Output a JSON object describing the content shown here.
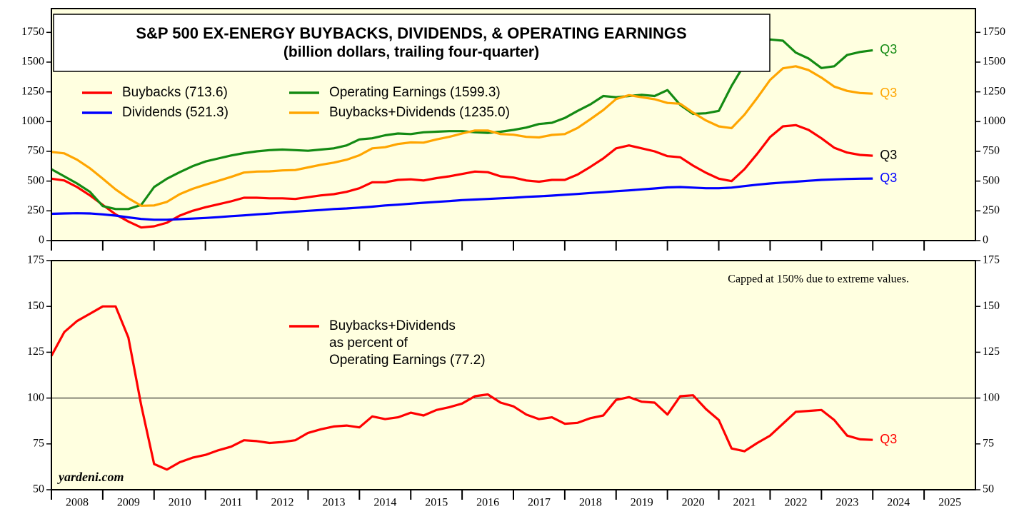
{
  "chart_data": [
    {
      "type": "line",
      "title": "S&P 500 EX-ENERGY BUYBACKS, DIVIDENDS, & OPERATING EARNINGS",
      "subtitle": "(billion dollars, trailing four-quarter)",
      "x": [
        2008,
        2008.25,
        2008.5,
        2008.75,
        2009,
        2009.25,
        2009.5,
        2009.75,
        2010,
        2010.25,
        2010.5,
        2010.75,
        2011,
        2011.25,
        2011.5,
        2011.75,
        2012,
        2012.25,
        2012.5,
        2012.75,
        2013,
        2013.25,
        2013.5,
        2013.75,
        2014,
        2014.25,
        2014.5,
        2014.75,
        2015,
        2015.25,
        2015.5,
        2015.75,
        2016,
        2016.25,
        2016.5,
        2016.75,
        2017,
        2017.25,
        2017.5,
        2017.75,
        2018,
        2018.25,
        2018.5,
        2018.75,
        2019,
        2019.25,
        2019.5,
        2019.75,
        2020,
        2020.25,
        2020.5,
        2020.75,
        2021,
        2021.25,
        2021.5,
        2021.75,
        2022,
        2022.25,
        2022.5,
        2022.75,
        2023,
        2023.25,
        2023.5,
        2023.75,
        2024
      ],
      "xlim": [
        2008,
        2026
      ],
      "xticks": [
        2008,
        2009,
        2010,
        2011,
        2012,
        2013,
        2014,
        2015,
        2016,
        2017,
        2018,
        2019,
        2020,
        2021,
        2022,
        2023,
        2024,
        2025
      ],
      "ylim": [
        0,
        1950
      ],
      "yticks": [
        0,
        250,
        500,
        750,
        1000,
        1250,
        1500,
        1750
      ],
      "series": [
        {
          "name": "Buybacks (713.6)",
          "color": "#ff0000",
          "end_label": "Q3",
          "end_label_color": "#000000",
          "values": [
            520,
            505,
            450,
            380,
            300,
            220,
            160,
            110,
            120,
            150,
            210,
            250,
            280,
            305,
            330,
            360,
            360,
            355,
            355,
            350,
            365,
            380,
            390,
            410,
            440,
            490,
            490,
            510,
            515,
            505,
            525,
            540,
            560,
            580,
            575,
            540,
            530,
            505,
            495,
            510,
            510,
            555,
            620,
            690,
            775,
            800,
            775,
            750,
            710,
            700,
            630,
            570,
            520,
            500,
            600,
            730,
            870,
            960,
            970,
            930,
            860,
            780,
            740,
            720,
            713.6
          ]
        },
        {
          "name": "Dividends (521.3)",
          "color": "#0000ff",
          "end_label": "Q3",
          "end_label_color": "#0000ff",
          "values": [
            225,
            228,
            230,
            228,
            220,
            210,
            195,
            182,
            175,
            175,
            180,
            185,
            190,
            197,
            205,
            212,
            220,
            227,
            235,
            243,
            250,
            257,
            265,
            270,
            277,
            285,
            295,
            302,
            310,
            318,
            325,
            332,
            340,
            345,
            350,
            355,
            360,
            367,
            372,
            378,
            385,
            392,
            400,
            407,
            415,
            422,
            430,
            438,
            447,
            450,
            445,
            440,
            440,
            445,
            458,
            470,
            480,
            488,
            495,
            503,
            510,
            514,
            518,
            520,
            521.3
          ]
        },
        {
          "name": "Operating Earnings (1599.3)",
          "color": "#138a13",
          "end_label": "Q3",
          "end_label_color": "#138a13",
          "values": [
            600,
            540,
            480,
            410,
            290,
            265,
            265,
            300,
            450,
            520,
            575,
            625,
            665,
            690,
            715,
            735,
            750,
            760,
            765,
            760,
            755,
            765,
            775,
            800,
            850,
            860,
            885,
            900,
            895,
            910,
            915,
            920,
            920,
            910,
            905,
            915,
            930,
            950,
            980,
            990,
            1030,
            1090,
            1145,
            1215,
            1205,
            1215,
            1225,
            1215,
            1265,
            1140,
            1065,
            1070,
            1090,
            1300,
            1480,
            1560,
            1690,
            1680,
            1580,
            1530,
            1450,
            1465,
            1560,
            1585,
            1599.3
          ]
        },
        {
          "name": "Buybacks+Dividends (1235.0)",
          "color": "#ffa500",
          "end_label": "Q3",
          "end_label_color": "#ffa500",
          "values": [
            745,
            733,
            680,
            608,
            520,
            430,
            355,
            292,
            295,
            325,
            390,
            435,
            470,
            502,
            535,
            572,
            580,
            582,
            590,
            593,
            615,
            637,
            655,
            680,
            717,
            775,
            785,
            812,
            825,
            823,
            850,
            872,
            900,
            925,
            925,
            895,
            890,
            872,
            867,
            888,
            895,
            947,
            1020,
            1097,
            1190,
            1222,
            1205,
            1188,
            1157,
            1150,
            1075,
            1010,
            960,
            945,
            1058,
            1200,
            1350,
            1448,
            1465,
            1433,
            1370,
            1294,
            1258,
            1240,
            1235.0
          ]
        }
      ]
    },
    {
      "type": "line",
      "annotation": "Capped at 150% due to extreme values.",
      "source": "yardeni.com",
      "x": [
        2008,
        2008.25,
        2008.5,
        2008.75,
        2009,
        2009.25,
        2009.5,
        2009.75,
        2010,
        2010.25,
        2010.5,
        2010.75,
        2011,
        2011.25,
        2011.5,
        2011.75,
        2012,
        2012.25,
        2012.5,
        2012.75,
        2013,
        2013.25,
        2013.5,
        2013.75,
        2014,
        2014.25,
        2014.5,
        2014.75,
        2015,
        2015.25,
        2015.5,
        2015.75,
        2016,
        2016.25,
        2016.5,
        2016.75,
        2017,
        2017.25,
        2017.5,
        2017.75,
        2018,
        2018.25,
        2018.5,
        2018.75,
        2019,
        2019.25,
        2019.5,
        2019.75,
        2020,
        2020.25,
        2020.5,
        2020.75,
        2021,
        2021.25,
        2021.5,
        2021.75,
        2022,
        2022.25,
        2022.5,
        2022.75,
        2023,
        2023.25,
        2023.5,
        2023.75,
        2024
      ],
      "xlim": [
        2008,
        2026
      ],
      "xticks": [
        2008,
        2009,
        2010,
        2011,
        2012,
        2013,
        2014,
        2015,
        2016,
        2017,
        2018,
        2019,
        2020,
        2021,
        2022,
        2023,
        2024,
        2025
      ],
      "ylim": [
        50,
        175
      ],
      "yticks": [
        50,
        75,
        100,
        125,
        150,
        175
      ],
      "hline": 100,
      "series": [
        {
          "name": [
            "Buybacks+Dividends",
            "as percent of",
            "Operating Earnings (77.2)"
          ],
          "color": "#ff0000",
          "end_label": "Q3",
          "end_label_color": "#ff0000",
          "values": [
            123,
            136,
            142,
            146,
            150,
            150,
            133,
            96,
            64,
            61,
            65,
            67.5,
            69,
            71.5,
            73.5,
            77,
            76.5,
            75.5,
            76,
            77,
            81,
            83,
            84.5,
            85,
            84,
            90,
            88.5,
            89.5,
            92,
            90.5,
            93.5,
            95,
            97,
            101,
            102,
            97.5,
            95.5,
            91,
            88.5,
            89.5,
            86,
            86.5,
            89,
            90.5,
            99,
            100.5,
            98,
            97.5,
            91,
            101,
            101.5,
            94,
            88,
            72.5,
            71,
            75.5,
            79.5,
            86,
            92.5,
            93,
            93.5,
            88,
            79.5,
            77.5,
            77.2
          ]
        }
      ]
    }
  ]
}
